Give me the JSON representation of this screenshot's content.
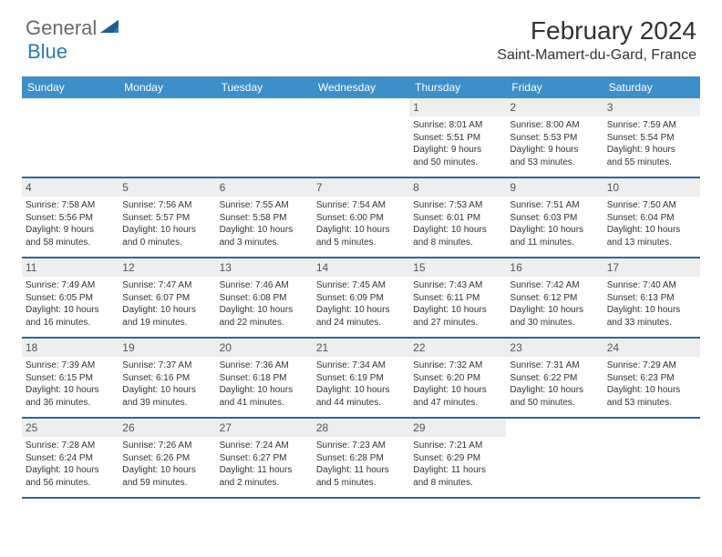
{
  "brand": {
    "part1": "General",
    "part2": "Blue"
  },
  "title": "February 2024",
  "location": "Saint-Mamert-du-Gard, France",
  "colors": {
    "header_bg": "#3d8fc9",
    "row_divider": "#2a6a9a",
    "daynum_bg": "#eeeeee",
    "logo_gray": "#6a6a6a",
    "logo_blue": "#2a7ab8"
  },
  "weekdays": [
    "Sunday",
    "Monday",
    "Tuesday",
    "Wednesday",
    "Thursday",
    "Friday",
    "Saturday"
  ],
  "weeks": [
    [
      {
        "blank": true
      },
      {
        "blank": true
      },
      {
        "blank": true
      },
      {
        "blank": true
      },
      {
        "n": "1",
        "sr": "Sunrise: 8:01 AM",
        "ss": "Sunset: 5:51 PM",
        "d1": "Daylight: 9 hours",
        "d2": "and 50 minutes."
      },
      {
        "n": "2",
        "sr": "Sunrise: 8:00 AM",
        "ss": "Sunset: 5:53 PM",
        "d1": "Daylight: 9 hours",
        "d2": "and 53 minutes."
      },
      {
        "n": "3",
        "sr": "Sunrise: 7:59 AM",
        "ss": "Sunset: 5:54 PM",
        "d1": "Daylight: 9 hours",
        "d2": "and 55 minutes."
      }
    ],
    [
      {
        "n": "4",
        "sr": "Sunrise: 7:58 AM",
        "ss": "Sunset: 5:56 PM",
        "d1": "Daylight: 9 hours",
        "d2": "and 58 minutes."
      },
      {
        "n": "5",
        "sr": "Sunrise: 7:56 AM",
        "ss": "Sunset: 5:57 PM",
        "d1": "Daylight: 10 hours",
        "d2": "and 0 minutes."
      },
      {
        "n": "6",
        "sr": "Sunrise: 7:55 AM",
        "ss": "Sunset: 5:58 PM",
        "d1": "Daylight: 10 hours",
        "d2": "and 3 minutes."
      },
      {
        "n": "7",
        "sr": "Sunrise: 7:54 AM",
        "ss": "Sunset: 6:00 PM",
        "d1": "Daylight: 10 hours",
        "d2": "and 5 minutes."
      },
      {
        "n": "8",
        "sr": "Sunrise: 7:53 AM",
        "ss": "Sunset: 6:01 PM",
        "d1": "Daylight: 10 hours",
        "d2": "and 8 minutes."
      },
      {
        "n": "9",
        "sr": "Sunrise: 7:51 AM",
        "ss": "Sunset: 6:03 PM",
        "d1": "Daylight: 10 hours",
        "d2": "and 11 minutes."
      },
      {
        "n": "10",
        "sr": "Sunrise: 7:50 AM",
        "ss": "Sunset: 6:04 PM",
        "d1": "Daylight: 10 hours",
        "d2": "and 13 minutes."
      }
    ],
    [
      {
        "n": "11",
        "sr": "Sunrise: 7:49 AM",
        "ss": "Sunset: 6:05 PM",
        "d1": "Daylight: 10 hours",
        "d2": "and 16 minutes."
      },
      {
        "n": "12",
        "sr": "Sunrise: 7:47 AM",
        "ss": "Sunset: 6:07 PM",
        "d1": "Daylight: 10 hours",
        "d2": "and 19 minutes."
      },
      {
        "n": "13",
        "sr": "Sunrise: 7:46 AM",
        "ss": "Sunset: 6:08 PM",
        "d1": "Daylight: 10 hours",
        "d2": "and 22 minutes."
      },
      {
        "n": "14",
        "sr": "Sunrise: 7:45 AM",
        "ss": "Sunset: 6:09 PM",
        "d1": "Daylight: 10 hours",
        "d2": "and 24 minutes."
      },
      {
        "n": "15",
        "sr": "Sunrise: 7:43 AM",
        "ss": "Sunset: 6:11 PM",
        "d1": "Daylight: 10 hours",
        "d2": "and 27 minutes."
      },
      {
        "n": "16",
        "sr": "Sunrise: 7:42 AM",
        "ss": "Sunset: 6:12 PM",
        "d1": "Daylight: 10 hours",
        "d2": "and 30 minutes."
      },
      {
        "n": "17",
        "sr": "Sunrise: 7:40 AM",
        "ss": "Sunset: 6:13 PM",
        "d1": "Daylight: 10 hours",
        "d2": "and 33 minutes."
      }
    ],
    [
      {
        "n": "18",
        "sr": "Sunrise: 7:39 AM",
        "ss": "Sunset: 6:15 PM",
        "d1": "Daylight: 10 hours",
        "d2": "and 36 minutes."
      },
      {
        "n": "19",
        "sr": "Sunrise: 7:37 AM",
        "ss": "Sunset: 6:16 PM",
        "d1": "Daylight: 10 hours",
        "d2": "and 39 minutes."
      },
      {
        "n": "20",
        "sr": "Sunrise: 7:36 AM",
        "ss": "Sunset: 6:18 PM",
        "d1": "Daylight: 10 hours",
        "d2": "and 41 minutes."
      },
      {
        "n": "21",
        "sr": "Sunrise: 7:34 AM",
        "ss": "Sunset: 6:19 PM",
        "d1": "Daylight: 10 hours",
        "d2": "and 44 minutes."
      },
      {
        "n": "22",
        "sr": "Sunrise: 7:32 AM",
        "ss": "Sunset: 6:20 PM",
        "d1": "Daylight: 10 hours",
        "d2": "and 47 minutes."
      },
      {
        "n": "23",
        "sr": "Sunrise: 7:31 AM",
        "ss": "Sunset: 6:22 PM",
        "d1": "Daylight: 10 hours",
        "d2": "and 50 minutes."
      },
      {
        "n": "24",
        "sr": "Sunrise: 7:29 AM",
        "ss": "Sunset: 6:23 PM",
        "d1": "Daylight: 10 hours",
        "d2": "and 53 minutes."
      }
    ],
    [
      {
        "n": "25",
        "sr": "Sunrise: 7:28 AM",
        "ss": "Sunset: 6:24 PM",
        "d1": "Daylight: 10 hours",
        "d2": "and 56 minutes."
      },
      {
        "n": "26",
        "sr": "Sunrise: 7:26 AM",
        "ss": "Sunset: 6:26 PM",
        "d1": "Daylight: 10 hours",
        "d2": "and 59 minutes."
      },
      {
        "n": "27",
        "sr": "Sunrise: 7:24 AM",
        "ss": "Sunset: 6:27 PM",
        "d1": "Daylight: 11 hours",
        "d2": "and 2 minutes."
      },
      {
        "n": "28",
        "sr": "Sunrise: 7:23 AM",
        "ss": "Sunset: 6:28 PM",
        "d1": "Daylight: 11 hours",
        "d2": "and 5 minutes."
      },
      {
        "n": "29",
        "sr": "Sunrise: 7:21 AM",
        "ss": "Sunset: 6:29 PM",
        "d1": "Daylight: 11 hours",
        "d2": "and 8 minutes."
      },
      {
        "blank": true
      },
      {
        "blank": true
      }
    ]
  ]
}
